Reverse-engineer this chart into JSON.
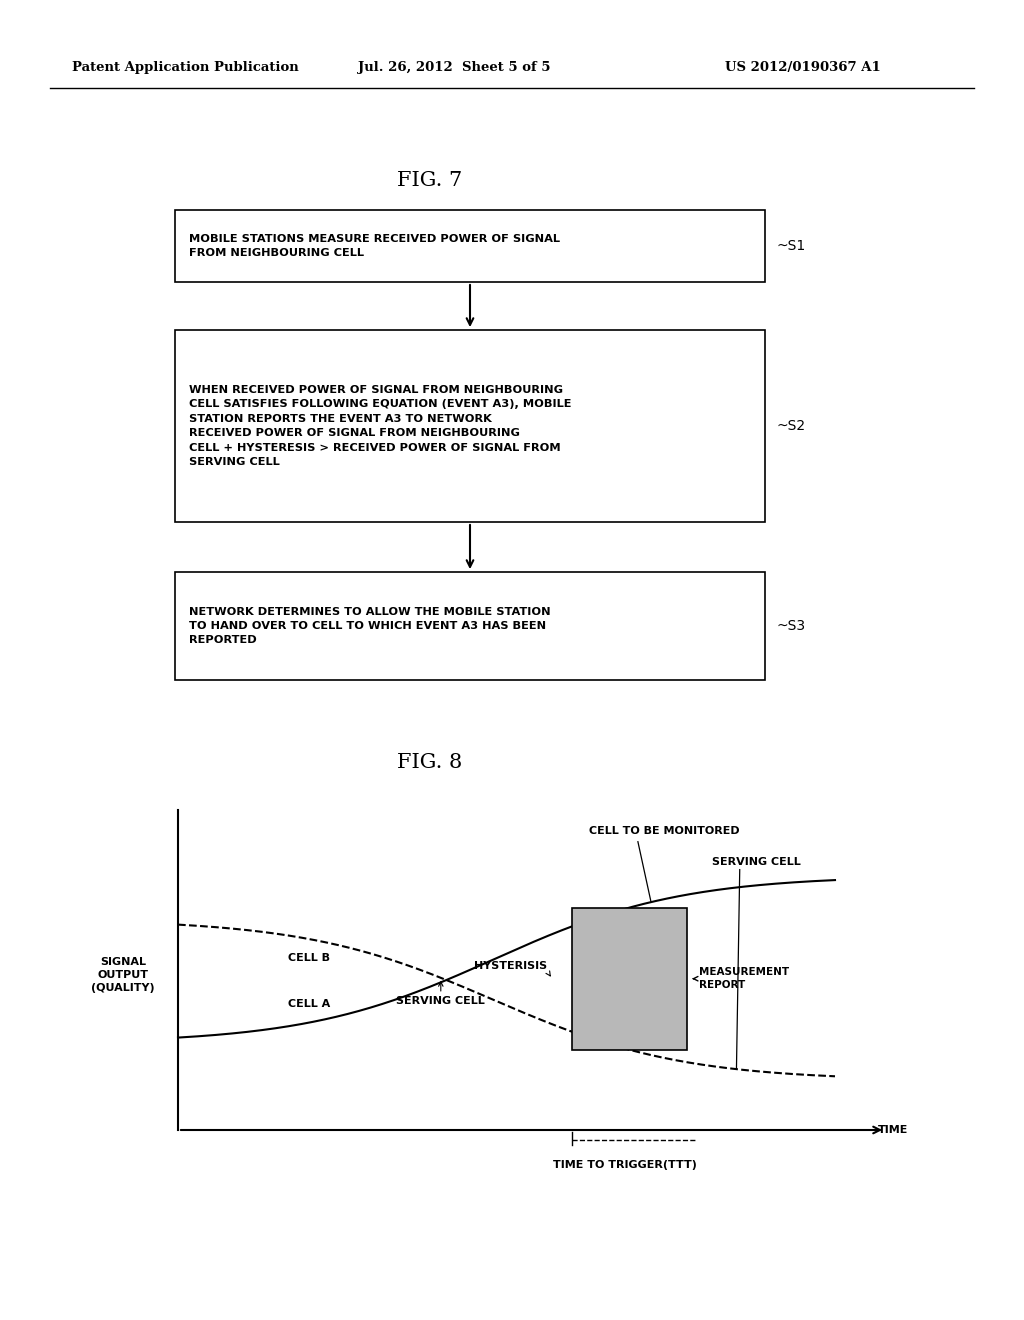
{
  "header_left": "Patent Application Publication",
  "header_mid": "Jul. 26, 2012  Sheet 5 of 5",
  "header_right": "US 2012/0190367 A1",
  "fig7_title": "FIG. 7",
  "fig8_title": "FIG. 8",
  "box1_text": "MOBILE STATIONS MEASURE RECEIVED POWER OF SIGNAL\nFROM NEIGHBOURING CELL",
  "box1_label": "~S1",
  "box2_text": "WHEN RECEIVED POWER OF SIGNAL FROM NEIGHBOURING\nCELL SATISFIES FOLLOWING EQUATION (EVENT A3), MOBILE\nSTATION REPORTS THE EVENT A3 TO NETWORK\nRECEIVED POWER OF SIGNAL FROM NEIGHBOURING\nCELL + HYSTERESIS > RECEIVED POWER OF SIGNAL FROM\nSERVING CELL",
  "box2_label": "~S2",
  "box3_text": "NETWORK DETERMINES TO ALLOW THE MOBILE STATION\nTO HAND OVER TO CELL TO WHICH EVENT A3 HAS BEEN\nREPORTED",
  "box3_label": "~S3",
  "cell_a_label": "CELL A",
  "cell_b_label": "CELL B",
  "serving_cell_label_bottom": "SERVING CELL",
  "cell_monitor_label": "CELL TO BE MONITORED",
  "serving_cell_label_top": "SERVING CELL",
  "hysterisis_label": "HYSTERISIS",
  "measurement_report_label": "MEASUREMENT\nREPORT",
  "time_label": "TIME",
  "ttt_label": "TIME TO TRIGGER(TTT)",
  "signal_output_label": "SIGNAL\nOUTPUT\n(QUALITY)",
  "bg_color": "#ffffff",
  "box_color": "#ffffff",
  "box_edge_color": "#000000",
  "text_color": "#000000",
  "shaded_rect_color": "#b8b8b8"
}
